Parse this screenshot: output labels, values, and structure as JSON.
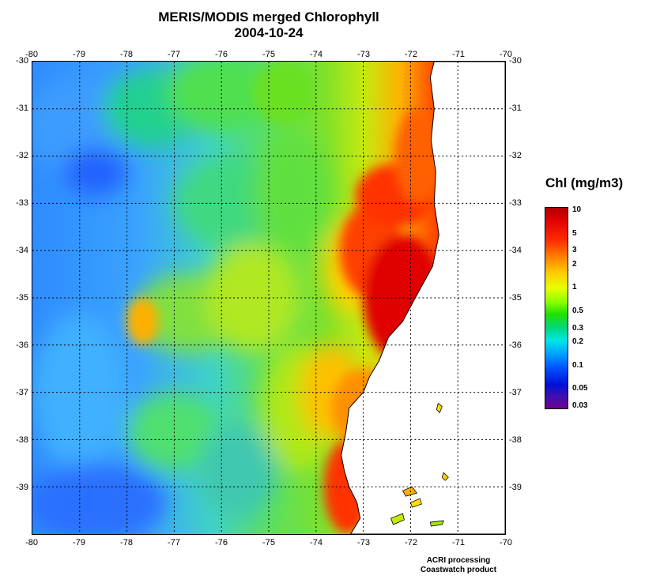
{
  "title": "MERIS/MODIS merged Chlorophyll",
  "subtitle": "2004-10-24",
  "map": {
    "lon_min": -80,
    "lon_max": -70,
    "lat_min": -40,
    "lat_max": -30,
    "x_ticks": [
      "-80",
      "-79",
      "-78",
      "-77",
      "-76",
      "-75",
      "-74",
      "-73",
      "-72",
      "-71",
      "-70"
    ],
    "y_ticks": [
      "-30",
      "-31",
      "-32",
      "-33",
      "-34",
      "-35",
      "-36",
      "-37",
      "-38",
      "-39"
    ],
    "grid": true,
    "land_color": "#ffffff",
    "coastline_color": "#000000"
  },
  "legend": {
    "title": "Chl (mg/m3)",
    "labels": [
      {
        "text": "10",
        "value": 10
      },
      {
        "text": "5",
        "value": 5
      },
      {
        "text": "3",
        "value": 3
      },
      {
        "text": "2",
        "value": 2
      },
      {
        "text": "1",
        "value": 1
      },
      {
        "text": "0.5",
        "value": 0.5
      },
      {
        "text": "0.3",
        "value": 0.3
      },
      {
        "text": "0.2",
        "value": 0.2
      },
      {
        "text": "0.1",
        "value": 0.1
      },
      {
        "text": "0.05",
        "value": 0.05
      },
      {
        "text": "0.03",
        "value": 0.03
      }
    ]
  },
  "credits": {
    "line1": "ACRI processing",
    "line2": "Coastwatch product"
  }
}
